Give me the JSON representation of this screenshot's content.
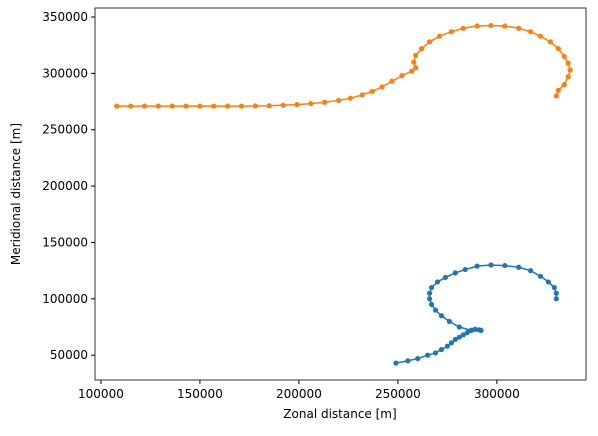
{
  "chart_data": {
    "type": "line",
    "xlabel": "Zonal distance [m]",
    "ylabel": "Meridional distance [m]",
    "xlim": [
      97000,
      345000
    ],
    "ylim": [
      28000,
      358000
    ],
    "xticks": [
      100000,
      150000,
      200000,
      250000,
      300000
    ],
    "yticks": [
      50000,
      100000,
      150000,
      200000,
      250000,
      300000,
      350000
    ],
    "grid": false,
    "series": [
      {
        "color": "#1f77b4",
        "x": [
          249000,
          255000,
          260000,
          265000,
          269000,
          272000,
          275000,
          277000,
          279000,
          281000,
          283000,
          285000,
          287000,
          289000,
          291000,
          292000,
          287000,
          281000,
          276000,
          272000,
          269000,
          267000,
          266000,
          266000,
          267000,
          270000,
          274000,
          279000,
          284000,
          290000,
          297000,
          304000,
          311000,
          317000,
          322000,
          326000,
          329000,
          330000,
          330000
        ],
        "y": [
          43000,
          45000,
          47000,
          50000,
          52000,
          55000,
          58000,
          61000,
          64000,
          66000,
          68000,
          70000,
          72000,
          73000,
          72500,
          72000,
          72000,
          75000,
          80000,
          85000,
          90000,
          95000,
          100000,
          105000,
          110000,
          115000,
          119000,
          123000,
          126000,
          129000,
          130000,
          129500,
          128000,
          125000,
          120000,
          115000,
          110000,
          105000,
          100000
        ]
      },
      {
        "color": "#ff7f0e",
        "x": [
          108000,
          115000,
          122000,
          129000,
          136000,
          143000,
          150000,
          157000,
          164000,
          171000,
          178000,
          185000,
          192000,
          199000,
          206000,
          213000,
          220000,
          226000,
          232000,
          237000,
          242000,
          247000,
          252000,
          257000,
          259000,
          258000,
          259000,
          262000,
          266000,
          271000,
          277000,
          283000,
          290000,
          297000,
          304000,
          311000,
          317000,
          322000,
          327000,
          331000,
          334000,
          336000,
          337000,
          336000,
          334000,
          331000,
          330000
        ],
        "y": [
          271000,
          271000,
          271000,
          271000,
          271000,
          271000,
          271000,
          271000,
          271000,
          271000,
          271100,
          271300,
          271800,
          272300,
          273200,
          274400,
          276000,
          278000,
          281000,
          284000,
          288000,
          293000,
          298000,
          302000,
          305000,
          310000,
          316000,
          322000,
          328000,
          333000,
          337000,
          340000,
          342000,
          342500,
          342000,
          340000,
          337000,
          333000,
          328000,
          322000,
          315000,
          309000,
          303000,
          297000,
          290000,
          285000,
          280000
        ]
      }
    ]
  }
}
